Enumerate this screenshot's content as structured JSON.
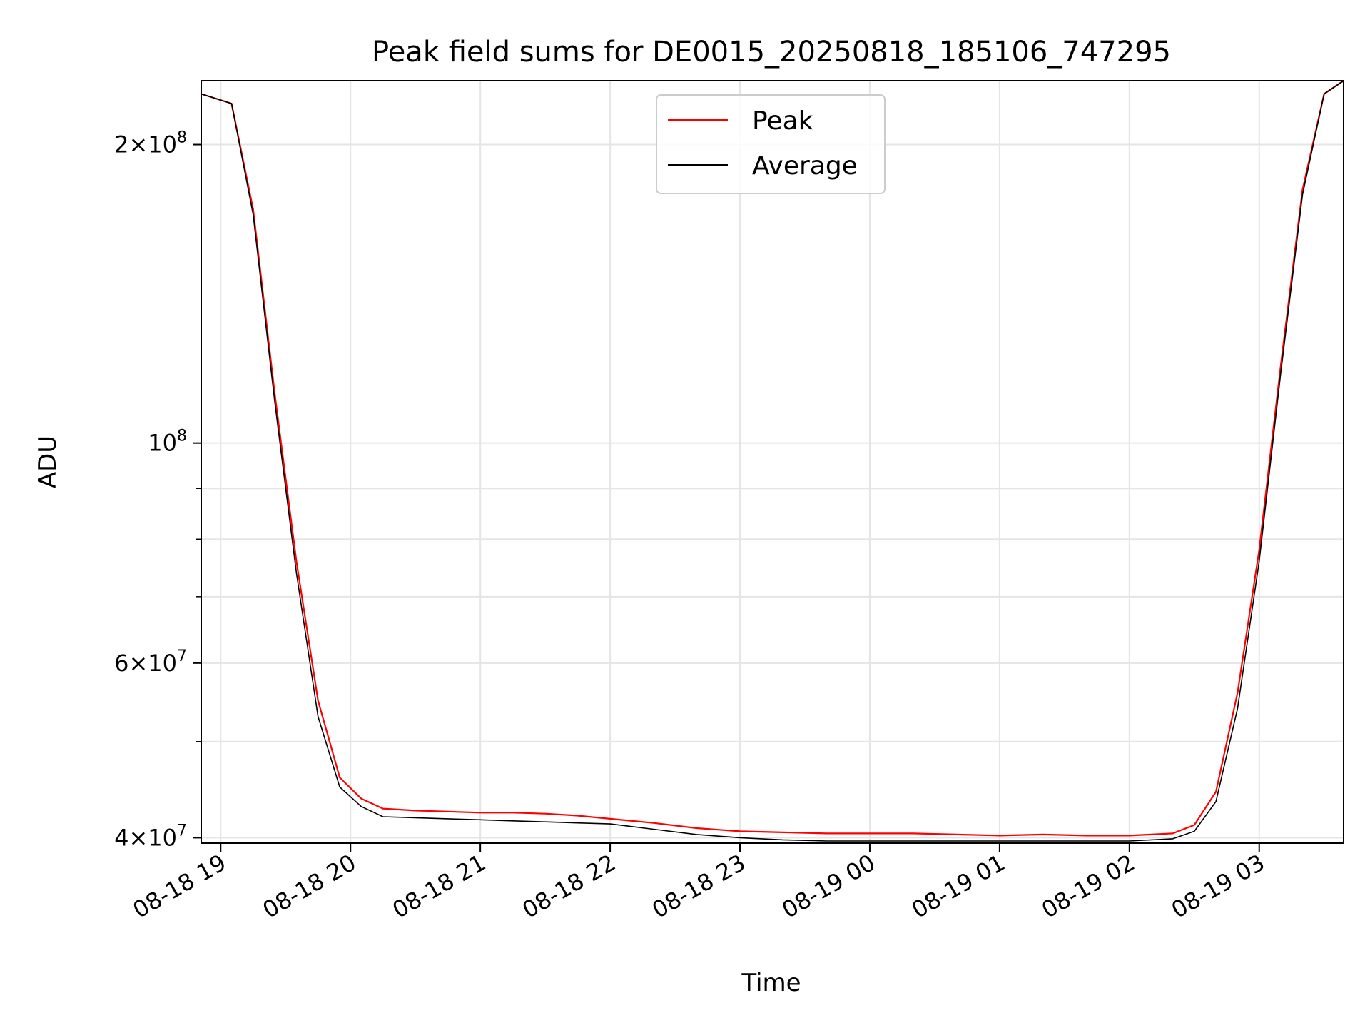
{
  "chart_data": {
    "type": "line",
    "title": "Peak field sums for DE0015_20250818_185106_747295",
    "xlabel": "Time",
    "ylabel": "ADU",
    "yscale": "log",
    "grid": true,
    "legend_position": "top-center",
    "xlim": [
      "2025-08-18 18:51",
      "2025-08-19 03:39"
    ],
    "ylim": [
      39500000,
      232000000
    ],
    "x_ticks": [
      {
        "label": "08-18 19",
        "t": "2025-08-18 19:00"
      },
      {
        "label": "08-18 20",
        "t": "2025-08-18 20:00"
      },
      {
        "label": "08-18 21",
        "t": "2025-08-18 21:00"
      },
      {
        "label": "08-18 22",
        "t": "2025-08-18 22:00"
      },
      {
        "label": "08-18 23",
        "t": "2025-08-18 23:00"
      },
      {
        "label": "08-19 00",
        "t": "2025-08-19 00:00"
      },
      {
        "label": "08-19 01",
        "t": "2025-08-19 01:00"
      },
      {
        "label": "08-19 02",
        "t": "2025-08-19 02:00"
      },
      {
        "label": "08-19 03",
        "t": "2025-08-19 03:00"
      }
    ],
    "y_ticks": [
      {
        "value": 40000000,
        "mantissa": "4",
        "exponent": "7"
      },
      {
        "value": 60000000,
        "mantissa": "6",
        "exponent": "7"
      },
      {
        "value": 100000000,
        "mantissa": "",
        "exponent": "8"
      },
      {
        "value": 200000000,
        "mantissa": "2",
        "exponent": "8"
      }
    ],
    "y_minor_ticks": [
      50000000,
      70000000,
      80000000,
      90000000
    ],
    "series": [
      {
        "name": "Peak",
        "color": "#ff0000",
        "x": [
          "2025-08-18 18:51",
          "2025-08-18 19:05",
          "2025-08-18 19:15",
          "2025-08-18 19:25",
          "2025-08-18 19:35",
          "2025-08-18 19:45",
          "2025-08-18 19:55",
          "2025-08-18 20:05",
          "2025-08-18 20:15",
          "2025-08-18 20:30",
          "2025-08-18 20:45",
          "2025-08-18 21:00",
          "2025-08-18 21:15",
          "2025-08-18 21:30",
          "2025-08-18 21:45",
          "2025-08-18 22:00",
          "2025-08-18 22:20",
          "2025-08-18 22:40",
          "2025-08-18 23:00",
          "2025-08-18 23:20",
          "2025-08-18 23:40",
          "2025-08-19 00:00",
          "2025-08-19 00:20",
          "2025-08-19 00:40",
          "2025-08-19 01:00",
          "2025-08-19 01:20",
          "2025-08-19 01:40",
          "2025-08-19 02:00",
          "2025-08-19 02:20",
          "2025-08-19 02:30",
          "2025-08-19 02:40",
          "2025-08-19 02:50",
          "2025-08-19 03:00",
          "2025-08-19 03:10",
          "2025-08-19 03:20",
          "2025-08-19 03:30",
          "2025-08-19 03:39"
        ],
        "y": [
          225000000,
          220000000,
          172000000,
          112000000,
          76000000,
          55000000,
          46000000,
          43800000,
          42800000,
          42600000,
          42500000,
          42400000,
          42400000,
          42300000,
          42100000,
          41800000,
          41400000,
          40900000,
          40600000,
          40500000,
          40400000,
          40400000,
          40400000,
          40300000,
          40200000,
          40300000,
          40200000,
          40200000,
          40400000,
          41200000,
          44500000,
          56000000,
          78000000,
          120000000,
          180000000,
          225000000,
          232000000
        ]
      },
      {
        "name": "Average",
        "color": "#000000",
        "x": [
          "2025-08-18 18:51",
          "2025-08-18 19:05",
          "2025-08-18 19:15",
          "2025-08-18 19:25",
          "2025-08-18 19:35",
          "2025-08-18 19:45",
          "2025-08-18 19:55",
          "2025-08-18 20:05",
          "2025-08-18 20:15",
          "2025-08-18 20:30",
          "2025-08-18 20:45",
          "2025-08-18 21:00",
          "2025-08-18 21:15",
          "2025-08-18 21:30",
          "2025-08-18 21:45",
          "2025-08-18 22:00",
          "2025-08-18 22:20",
          "2025-08-18 22:40",
          "2025-08-18 23:00",
          "2025-08-18 23:20",
          "2025-08-18 23:40",
          "2025-08-19 00:00",
          "2025-08-19 00:20",
          "2025-08-19 00:40",
          "2025-08-19 01:00",
          "2025-08-19 01:20",
          "2025-08-19 01:40",
          "2025-08-19 02:00",
          "2025-08-19 02:20",
          "2025-08-19 02:30",
          "2025-08-19 02:40",
          "2025-08-19 02:50",
          "2025-08-19 03:00",
          "2025-08-19 03:10",
          "2025-08-19 03:20",
          "2025-08-19 03:30",
          "2025-08-19 03:39"
        ],
        "y": [
          225000000,
          220000000,
          170000000,
          110000000,
          74000000,
          53000000,
          45000000,
          43000000,
          42000000,
          41900000,
          41800000,
          41700000,
          41600000,
          41500000,
          41400000,
          41300000,
          40800000,
          40300000,
          40000000,
          39800000,
          39700000,
          39700000,
          39700000,
          39700000,
          39700000,
          39700000,
          39700000,
          39700000,
          39900000,
          40600000,
          43500000,
          54000000,
          76000000,
          118000000,
          178000000,
          225000000,
          232000000
        ]
      }
    ]
  }
}
